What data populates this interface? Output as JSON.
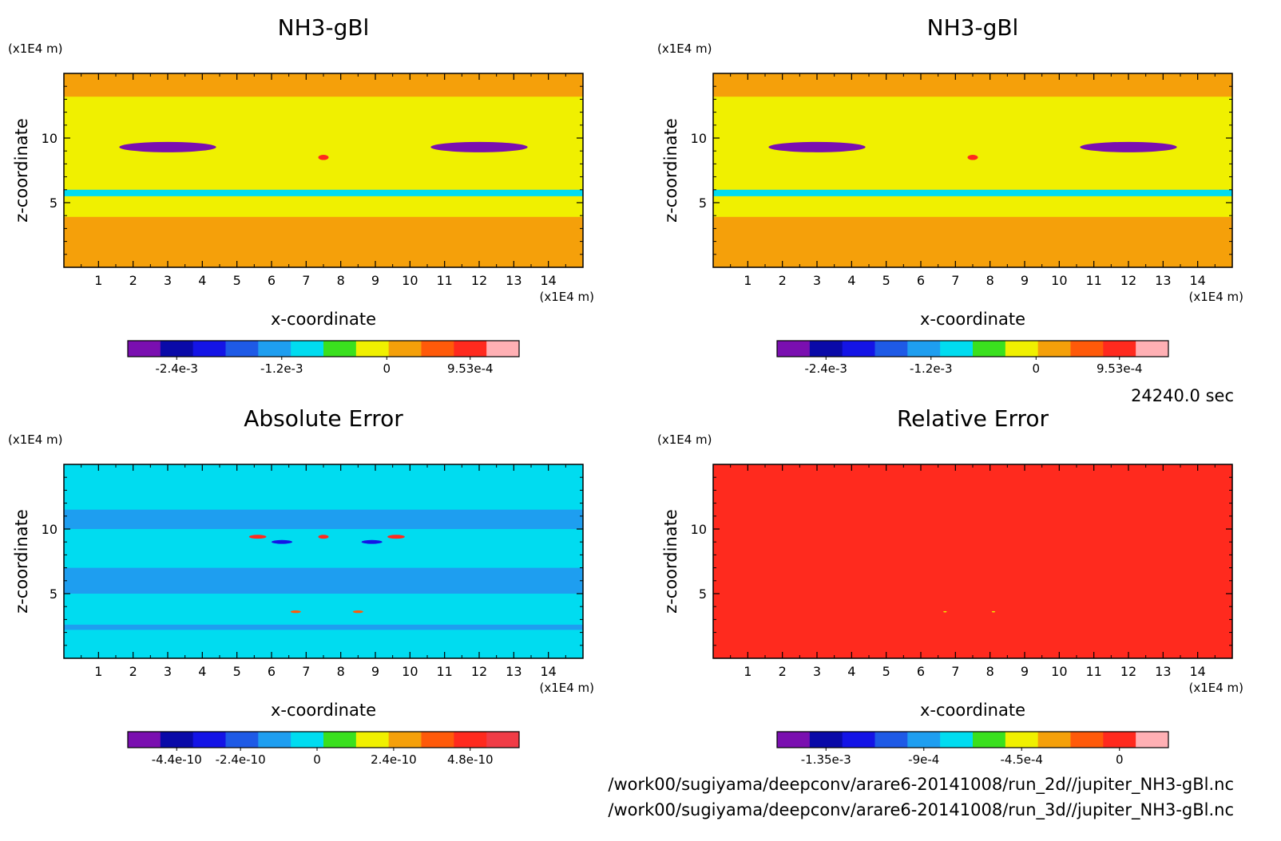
{
  "time_label": "24240.0 sec",
  "file_paths": [
    "/work00/sugiyama/deepconv/arare6-20141008/run_2d//jupiter_NH3-gBl.nc",
    "/work00/sugiyama/deepconv/arare6-20141008/run_3d//jupiter_NH3-gBl.nc"
  ],
  "palette": {
    "purple": "#7a0fb0",
    "navy": "#0a0aa8",
    "blue": "#1414e6",
    "blue2": "#1e5ae6",
    "skyblue": "#1e9ef0",
    "cyan": "#00dcf0",
    "green": "#3ae01e",
    "yellow": "#f0f000",
    "orange": "#f5a00a",
    "orange_red": "#ff5a0a",
    "red": "#ff2a1e",
    "crimson": "#f03c46",
    "pink": "#ffb0b4"
  },
  "chart_data": [
    {
      "id": "nh3_run2d",
      "type": "heatmap",
      "title": "NH3-gBl",
      "xlabel": "x-coordinate",
      "ylabel": "z-coordinate",
      "x_unit": "(x1E4 m)",
      "y_unit": "(x1E4 m)",
      "xlim": [
        0,
        15
      ],
      "ylim": [
        0,
        15
      ],
      "x_ticks": [
        1,
        2,
        3,
        4,
        5,
        6,
        7,
        8,
        9,
        10,
        11,
        12,
        13,
        14
      ],
      "y_ticks": [
        5,
        10
      ],
      "background_value": 0,
      "features": [
        {
          "kind": "band",
          "z_range": [
            0,
            3.9
          ],
          "value": 0.0002
        },
        {
          "kind": "band",
          "z_range": [
            5.5,
            6.0
          ],
          "value": -0.0008
        },
        {
          "kind": "band",
          "z_range": [
            13.2,
            15
          ],
          "value": 0.0002
        },
        {
          "kind": "jet",
          "x": 3.0,
          "z": 9.3,
          "width": 2.8,
          "height": 0.8,
          "value": -0.0028
        },
        {
          "kind": "jet",
          "x": 12.0,
          "z": 9.3,
          "width": 2.8,
          "height": 0.8,
          "value": -0.0028
        },
        {
          "kind": "blob",
          "x": 7.5,
          "z": 8.5,
          "width": 0.3,
          "height": 0.4,
          "value": 0.00095
        }
      ],
      "colorbar": {
        "colors": [
          "#7a0fb0",
          "#0a0aa8",
          "#1414e6",
          "#1e5ae6",
          "#1e9ef0",
          "#00dcf0",
          "#3ae01e",
          "#f0f000",
          "#f5a00a",
          "#ff5a0a",
          "#ff2a1e",
          "#ffb0b4"
        ],
        "tick_labels": [
          "-2.4e-3",
          "-1.2e-3",
          "0",
          "9.53e-4"
        ]
      }
    },
    {
      "id": "nh3_run3d",
      "type": "heatmap",
      "title": "NH3-gBl",
      "xlabel": "x-coordinate",
      "ylabel": "z-coordinate",
      "x_unit": "(x1E4 m)",
      "y_unit": "(x1E4 m)",
      "xlim": [
        0,
        15
      ],
      "ylim": [
        0,
        15
      ],
      "x_ticks": [
        1,
        2,
        3,
        4,
        5,
        6,
        7,
        8,
        9,
        10,
        11,
        12,
        13,
        14
      ],
      "y_ticks": [
        5,
        10
      ],
      "background_value": 0,
      "features": [
        {
          "kind": "band",
          "z_range": [
            0,
            3.9
          ],
          "value": 0.0002
        },
        {
          "kind": "band",
          "z_range": [
            5.5,
            6.0
          ],
          "value": -0.0008
        },
        {
          "kind": "band",
          "z_range": [
            13.2,
            15
          ],
          "value": 0.0002
        },
        {
          "kind": "jet",
          "x": 3.0,
          "z": 9.3,
          "width": 2.8,
          "height": 0.8,
          "value": -0.0028
        },
        {
          "kind": "jet",
          "x": 12.0,
          "z": 9.3,
          "width": 2.8,
          "height": 0.8,
          "value": -0.0028
        },
        {
          "kind": "blob",
          "x": 7.5,
          "z": 8.5,
          "width": 0.3,
          "height": 0.4,
          "value": 0.00095
        }
      ],
      "colorbar": {
        "colors": [
          "#7a0fb0",
          "#0a0aa8",
          "#1414e6",
          "#1e5ae6",
          "#1e9ef0",
          "#00dcf0",
          "#3ae01e",
          "#f0f000",
          "#f5a00a",
          "#ff5a0a",
          "#ff2a1e",
          "#ffb0b4"
        ],
        "tick_labels": [
          "-2.4e-3",
          "-1.2e-3",
          "0",
          "9.53e-4"
        ]
      }
    },
    {
      "id": "absolute_error",
      "type": "heatmap",
      "title": "Absolute Error",
      "xlabel": "x-coordinate",
      "ylabel": "z-coordinate",
      "x_unit": "(x1E4 m)",
      "y_unit": "(x1E4 m)",
      "xlim": [
        0,
        15
      ],
      "ylim": [
        0,
        15
      ],
      "x_ticks": [
        1,
        2,
        3,
        4,
        5,
        6,
        7,
        8,
        9,
        10,
        11,
        12,
        13,
        14
      ],
      "y_ticks": [
        5,
        10
      ],
      "background_value": 0,
      "features": [
        {
          "kind": "band",
          "z_range": [
            2.2,
            2.6
          ],
          "value": -1e-10
        },
        {
          "kind": "band",
          "z_range": [
            5.0,
            7.0
          ],
          "value": -1e-10
        },
        {
          "kind": "band",
          "z_range": [
            10.0,
            11.5
          ],
          "value": -1e-10
        },
        {
          "kind": "blob",
          "x": 5.6,
          "z": 9.4,
          "width": 0.5,
          "height": 0.3,
          "value": 4.5e-10
        },
        {
          "kind": "blob",
          "x": 9.6,
          "z": 9.4,
          "width": 0.5,
          "height": 0.3,
          "value": 4.5e-10
        },
        {
          "kind": "blob",
          "x": 7.5,
          "z": 9.4,
          "width": 0.3,
          "height": 0.3,
          "value": 4.5e-10
        },
        {
          "kind": "blob",
          "x": 6.3,
          "z": 9.0,
          "width": 0.6,
          "height": 0.3,
          "value": -3.5e-10
        },
        {
          "kind": "blob",
          "x": 8.9,
          "z": 9.0,
          "width": 0.6,
          "height": 0.3,
          "value": -3.5e-10
        },
        {
          "kind": "blob",
          "x": 6.7,
          "z": 3.6,
          "width": 0.3,
          "height": 0.2,
          "value": 4e-10
        },
        {
          "kind": "blob",
          "x": 8.5,
          "z": 3.6,
          "width": 0.3,
          "height": 0.2,
          "value": 4e-10
        }
      ],
      "colorbar": {
        "colors": [
          "#7a0fb0",
          "#0a0aa8",
          "#1414e6",
          "#1e5ae6",
          "#1e9ef0",
          "#00dcf0",
          "#3ae01e",
          "#f0f000",
          "#f5a00a",
          "#ff5a0a",
          "#ff2a1e",
          "#f03c46"
        ],
        "tick_labels": [
          "-4.4e-10",
          "-2.4e-10",
          "0",
          "2.4e-10",
          "4.8e-10"
        ]
      }
    },
    {
      "id": "relative_error",
      "type": "heatmap",
      "title": "Relative Error",
      "xlabel": "x-coordinate",
      "ylabel": "z-coordinate",
      "x_unit": "(x1E4 m)",
      "y_unit": "(x1E4 m)",
      "xlim": [
        0,
        15
      ],
      "ylim": [
        0,
        15
      ],
      "x_ticks": [
        1,
        2,
        3,
        4,
        5,
        6,
        7,
        8,
        9,
        10,
        11,
        12,
        13,
        14
      ],
      "y_ticks": [
        5,
        10
      ],
      "background_value": -5e-05,
      "features": [
        {
          "kind": "band",
          "z_range": [
            13.5,
            15
          ],
          "value": 0
        },
        {
          "kind": "band",
          "z_range": [
            8.0,
            9.0
          ],
          "value": 0
        },
        {
          "kind": "band",
          "z_range": [
            0,
            1.2
          ],
          "value": 0
        },
        {
          "kind": "blob",
          "x": 6.7,
          "z": 3.6,
          "width": 0.1,
          "height": 0.1,
          "value": -0.0004
        },
        {
          "kind": "blob",
          "x": 8.1,
          "z": 3.6,
          "width": 0.1,
          "height": 0.1,
          "value": -0.0004
        }
      ],
      "colorbar": {
        "colors": [
          "#7a0fb0",
          "#0a0aa8",
          "#1414e6",
          "#1e5ae6",
          "#1e9ef0",
          "#00dcf0",
          "#3ae01e",
          "#f0f000",
          "#f5a00a",
          "#ff5a0a",
          "#ff2a1e",
          "#ffb0b4"
        ],
        "tick_labels": [
          "-1.35e-3",
          "-9e-4",
          "-4.5e-4",
          "0"
        ]
      }
    }
  ]
}
